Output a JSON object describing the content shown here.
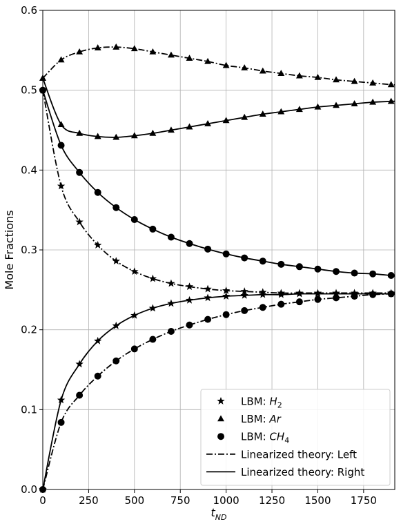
{
  "chart_data": {
    "type": "line",
    "xlabel": {
      "base": "t",
      "sub": "ND"
    },
    "ylabel": "Mole Fractions",
    "xlim": [
      0,
      1920
    ],
    "ylim": [
      0,
      0.6
    ],
    "xticks": [
      0,
      250,
      500,
      750,
      1000,
      1250,
      1500,
      1750
    ],
    "xtick_labels": [
      "0",
      "250",
      "500",
      "750",
      "1000",
      "1250",
      "1500",
      "1750"
    ],
    "yticks": [
      0.0,
      0.1,
      0.2,
      0.3,
      0.4,
      0.5,
      0.6
    ],
    "ytick_labels": [
      "0.0",
      "0.1",
      "0.2",
      "0.3",
      "0.4",
      "0.5",
      "0.6"
    ],
    "grid": true,
    "legend_position": "bottom-right",
    "legend": [
      {
        "label": "LBM: ",
        "math": "H",
        "sub": "2",
        "marker": "star",
        "line": "none"
      },
      {
        "label": "LBM: ",
        "math": "Ar",
        "sub": "",
        "marker": "triangle",
        "line": "none"
      },
      {
        "label": "LBM: ",
        "math": "CH",
        "sub": "4",
        "marker": "circle",
        "line": "none"
      },
      {
        "label": "Linearized theory: Left",
        "math": "",
        "sub": "",
        "marker": "none",
        "line": "dashdot"
      },
      {
        "label": "Linearized theory: Right",
        "math": "",
        "sub": "",
        "marker": "none",
        "line": "solid"
      }
    ],
    "lbm_x": [
      0,
      100,
      200,
      300,
      400,
      500,
      600,
      700,
      800,
      900,
      1000,
      1100,
      1200,
      1300,
      1400,
      1500,
      1600,
      1700,
      1800,
      1900
    ],
    "series": [
      {
        "species": "Ar",
        "side": "Left",
        "marker": "triangle",
        "values": [
          0.515,
          0.538,
          0.548,
          0.553,
          0.554,
          0.552,
          0.548,
          0.544,
          0.54,
          0.536,
          0.531,
          0.528,
          0.524,
          0.521,
          0.518,
          0.516,
          0.513,
          0.511,
          0.509,
          0.507
        ]
      },
      {
        "species": "Ar",
        "side": "Right",
        "marker": "triangle",
        "values": [
          0.515,
          0.457,
          0.446,
          0.442,
          0.441,
          0.443,
          0.446,
          0.45,
          0.454,
          0.458,
          0.462,
          0.466,
          0.47,
          0.473,
          0.476,
          0.479,
          0.481,
          0.483,
          0.485,
          0.486
        ]
      },
      {
        "species": "CH4",
        "side": "Right",
        "marker": "circle",
        "values": [
          0.5,
          0.431,
          0.397,
          0.372,
          0.353,
          0.338,
          0.326,
          0.316,
          0.308,
          0.301,
          0.295,
          0.29,
          0.286,
          0.282,
          0.279,
          0.276,
          0.273,
          0.271,
          0.27,
          0.268
        ]
      },
      {
        "species": "H2",
        "side": "Left",
        "marker": "star",
        "values": [
          0.5,
          0.38,
          0.335,
          0.306,
          0.286,
          0.273,
          0.264,
          0.258,
          0.254,
          0.251,
          0.249,
          0.248,
          0.247,
          0.246,
          0.246,
          0.246,
          0.246,
          0.246,
          0.246,
          0.246
        ]
      },
      {
        "species": "H2",
        "side": "Right",
        "marker": "star",
        "values": [
          0.0,
          0.112,
          0.157,
          0.186,
          0.205,
          0.218,
          0.227,
          0.233,
          0.237,
          0.24,
          0.242,
          0.243,
          0.244,
          0.244,
          0.245,
          0.245,
          0.245,
          0.245,
          0.245,
          0.245
        ]
      },
      {
        "species": "CH4",
        "side": "Left",
        "marker": "circle",
        "values": [
          0.0,
          0.084,
          0.118,
          0.142,
          0.161,
          0.176,
          0.188,
          0.198,
          0.206,
          0.213,
          0.219,
          0.224,
          0.228,
          0.232,
          0.235,
          0.238,
          0.24,
          0.242,
          0.244,
          0.245
        ]
      }
    ]
  }
}
